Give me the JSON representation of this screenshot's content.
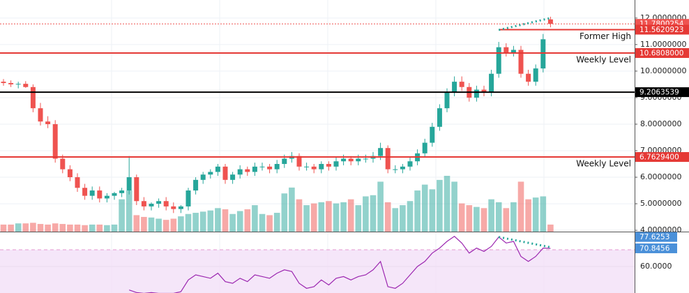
{
  "chart_data": {
    "type": "candlestick",
    "open": [
      9.6,
      9.55,
      9.5,
      9.52,
      9.4,
      8.6,
      8.1,
      8.0,
      6.7,
      6.3,
      6.0,
      5.6,
      5.3,
      5.5,
      5.2,
      5.3,
      5.4,
      5.5,
      6.0,
      5.1,
      4.9,
      5.0,
      5.1,
      4.9,
      4.8,
      4.9,
      5.5,
      5.9,
      6.1,
      6.2,
      6.4,
      5.9,
      6.1,
      6.3,
      6.2,
      6.4,
      6.4,
      6.3,
      6.5,
      6.7,
      6.8,
      6.4,
      6.4,
      6.3,
      6.5,
      6.4,
      6.6,
      6.7,
      6.6,
      6.7,
      6.7,
      6.8,
      7.1,
      6.3,
      6.3,
      6.4,
      6.6,
      6.9,
      7.3,
      7.9,
      8.6,
      9.2,
      9.6,
      9.4,
      9.0,
      9.3,
      9.2,
      9.9,
      10.9,
      10.7,
      10.8,
      9.9,
      9.6,
      10.1,
      11.95
    ],
    "high": [
      9.7,
      9.65,
      9.6,
      9.62,
      9.5,
      8.8,
      8.3,
      8.15,
      6.85,
      6.45,
      6.15,
      5.75,
      5.65,
      5.65,
      5.4,
      5.45,
      5.6,
      6.8,
      6.1,
      5.25,
      5.05,
      5.2,
      5.25,
      5.05,
      4.95,
      5.6,
      6.0,
      6.2,
      6.3,
      6.5,
      6.5,
      6.2,
      6.45,
      6.4,
      6.55,
      6.55,
      6.5,
      6.65,
      6.85,
      6.95,
      6.9,
      6.55,
      6.5,
      6.6,
      6.6,
      6.75,
      6.85,
      6.8,
      6.85,
      6.85,
      6.95,
      7.3,
      7.2,
      6.45,
      6.5,
      6.75,
      7.05,
      7.45,
      8.05,
      8.75,
      9.35,
      9.8,
      9.8,
      9.55,
      9.45,
      9.45,
      10.05,
      11.1,
      11.05,
      10.95,
      10.95,
      10.05,
      10.25,
      11.4,
      12.05
    ],
    "low": [
      9.45,
      9.4,
      9.35,
      9.37,
      8.45,
      7.95,
      7.85,
      6.55,
      6.15,
      5.85,
      5.45,
      5.15,
      5.15,
      5.05,
      5.05,
      5.15,
      5.25,
      5.35,
      4.95,
      4.75,
      4.75,
      4.85,
      4.75,
      4.65,
      4.65,
      4.75,
      5.35,
      5.75,
      5.95,
      6.05,
      5.75,
      5.75,
      5.95,
      6.05,
      6.05,
      6.25,
      6.15,
      6.15,
      6.35,
      6.55,
      6.25,
      6.25,
      6.15,
      6.15,
      6.25,
      6.25,
      6.45,
      6.45,
      6.45,
      6.55,
      6.55,
      6.65,
      6.15,
      6.15,
      6.15,
      6.25,
      6.45,
      6.75,
      7.15,
      7.75,
      8.45,
      9.05,
      9.25,
      8.85,
      8.85,
      9.05,
      9.05,
      9.75,
      10.55,
      10.55,
      9.75,
      9.45,
      9.45,
      9.95,
      11.65
    ],
    "close": [
      9.55,
      9.5,
      9.52,
      9.4,
      8.6,
      8.1,
      8.0,
      6.7,
      6.3,
      6.0,
      5.6,
      5.3,
      5.5,
      5.2,
      5.3,
      5.4,
      5.5,
      6.0,
      5.1,
      4.9,
      5.0,
      5.1,
      4.9,
      4.8,
      4.9,
      5.5,
      5.9,
      6.1,
      6.2,
      6.4,
      5.9,
      6.1,
      6.3,
      6.2,
      6.4,
      6.4,
      6.3,
      6.5,
      6.7,
      6.8,
      6.4,
      6.4,
      6.3,
      6.5,
      6.4,
      6.6,
      6.7,
      6.6,
      6.7,
      6.7,
      6.8,
      7.1,
      6.3,
      6.3,
      6.4,
      6.6,
      6.9,
      7.3,
      7.9,
      8.6,
      9.2,
      9.6,
      9.4,
      9.0,
      9.3,
      9.2,
      9.9,
      10.9,
      10.7,
      10.8,
      9.9,
      9.6,
      10.1,
      11.2,
      11.78
    ],
    "volume": [
      12,
      12,
      14,
      14,
      15,
      13,
      12,
      14,
      13,
      12,
      12,
      11,
      12,
      12,
      11,
      12,
      55,
      70,
      28,
      25,
      24,
      22,
      20,
      22,
      26,
      30,
      32,
      34,
      36,
      40,
      38,
      30,
      35,
      38,
      45,
      30,
      28,
      32,
      65,
      75,
      55,
      45,
      48,
      50,
      52,
      48,
      50,
      55,
      45,
      60,
      62,
      85,
      50,
      40,
      45,
      52,
      70,
      80,
      72,
      88,
      95,
      85,
      48,
      45,
      42,
      40,
      55,
      50,
      40,
      50,
      85,
      55,
      58,
      60,
      12
    ],
    "up_color": "#26a69a",
    "down_color": "#ef5350",
    "ylim": [
      3.95,
      12.68
    ],
    "yticks": [
      {
        "value": 4,
        "label": "4.0000000"
      },
      {
        "value": 5,
        "label": "5.0000000"
      },
      {
        "value": 6,
        "label": "6.0000000"
      },
      {
        "value": 7,
        "label": "7.0000000"
      },
      {
        "value": 8,
        "label": "8.0000000"
      },
      {
        "value": 9,
        "label": "9.0000000"
      },
      {
        "value": 10,
        "label": "10.0000000"
      },
      {
        "value": 11,
        "label": "11.0000000"
      },
      {
        "value": 12,
        "label": "12.0000000"
      }
    ],
    "grid": true,
    "levels": [
      {
        "value": 11.7800254,
        "color": "#ef5350",
        "style": "dotted"
      },
      {
        "value": 11.5620923,
        "color": "#e53935",
        "from_candle": 67,
        "annotation": "Former High"
      },
      {
        "value": 10.6808,
        "label": "10.6808000",
        "color": "#e53935",
        "annotation": "Weekly Level"
      },
      {
        "value": 9.2063539,
        "color": "#000000"
      },
      {
        "value": 6.76294,
        "label": "6.7629400",
        "color": "#e53935",
        "annotation": "Weekly Level"
      }
    ],
    "trendline": {
      "x": [
        67,
        74
      ],
      "y": [
        11.55,
        12.0
      ],
      "color": "#26a69a"
    },
    "rsi": {
      "values": [
        null,
        null,
        null,
        null,
        null,
        null,
        null,
        null,
        null,
        null,
        null,
        null,
        null,
        null,
        null,
        null,
        null,
        46,
        44.5,
        44,
        44.5,
        44,
        44,
        44,
        45,
        52,
        55,
        54,
        53,
        56,
        51,
        50,
        53,
        51,
        55,
        54,
        53,
        56,
        58,
        57,
        50,
        47,
        48,
        52,
        49,
        53,
        54,
        52,
        54,
        55,
        58,
        63,
        48,
        47,
        50,
        55,
        60,
        63,
        68,
        71,
        75,
        78,
        74,
        68,
        71,
        69,
        72,
        77.6,
        74,
        75,
        66,
        63,
        66,
        71,
        70.8456
      ],
      "color": "#9c27b0",
      "ylim": [
        44.2,
        80.4
      ],
      "yticks": [
        {
          "value": 60,
          "label": "60.0000"
        }
      ],
      "band_top": 70,
      "markers": [
        77.6253,
        70.8456
      ],
      "marker_color": "#4a90d9",
      "trendline": {
        "x": [
          67,
          74
        ],
        "y": [
          77.6,
          71.5
        ],
        "color": "#26a69a"
      }
    }
  }
}
